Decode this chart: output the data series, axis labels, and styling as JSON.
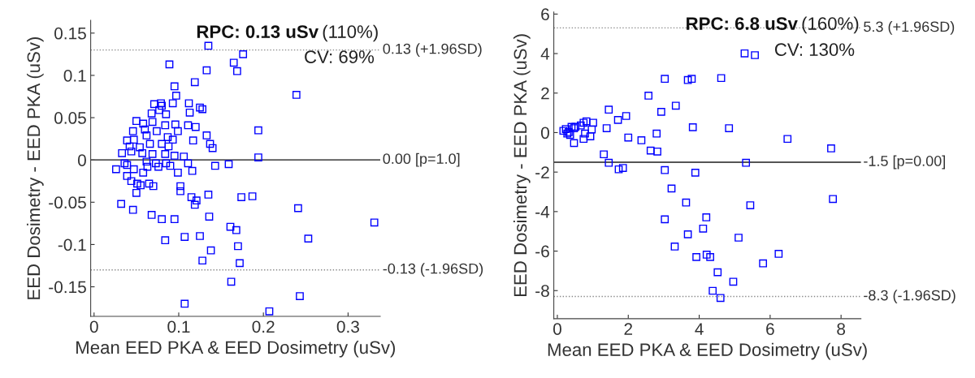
{
  "chart_data": [
    {
      "type": "scatter",
      "xlabel": "Mean EED PKA & EED Dosimetry (uSv)",
      "ylabel": "EED Dosimetry - EED PKA (uSv)",
      "marker": "square",
      "color": "#0000ff",
      "grid": false,
      "xlim": [
        -0.004,
        0.338
      ],
      "ylim": [
        -0.185,
        0.165
      ],
      "xticks": [
        0,
        0.1,
        0.2,
        0.3
      ],
      "yticks": [
        -0.15,
        -0.1,
        -0.05,
        0,
        0.05,
        0.1,
        0.15
      ],
      "x": [
        0.135,
        0.176,
        0.165,
        0.169,
        0.089,
        0.133,
        0.119,
        0.095,
        0.097,
        0.093,
        0.112,
        0.125,
        0.128,
        0.113,
        0.079,
        0.071,
        0.08,
        0.068,
        0.085,
        0.077,
        0.05,
        0.058,
        0.069,
        0.084,
        0.096,
        0.111,
        0.12,
        0.046,
        0.06,
        0.074,
        0.099,
        0.133,
        0.137,
        0.14,
        0.117,
        0.194,
        0.039,
        0.047,
        0.062,
        0.087,
        0.093,
        0.042,
        0.054,
        0.066,
        0.08,
        0.088,
        0.033,
        0.044,
        0.057,
        0.069,
        0.084,
        0.095,
        0.194,
        0.106,
        0.036,
        0.039,
        0.062,
        0.073,
        0.076,
        0.085,
        0.026,
        0.047,
        0.063,
        0.09,
        0.111,
        0.116,
        0.099,
        0.143,
        0.159,
        0.039,
        0.058,
        0.044,
        0.051,
        0.055,
        0.065,
        0.07,
        0.05,
        0.102,
        0.102,
        0.115,
        0.121,
        0.119,
        0.135,
        0.174,
        0.187,
        0.032,
        0.046,
        0.068,
        0.08,
        0.095,
        0.136,
        0.161,
        0.168,
        0.084,
        0.107,
        0.125,
        0.138,
        0.17,
        0.128,
        0.172,
        0.162,
        0.107,
        0.207,
        0.239,
        0.241,
        0.253,
        0.331,
        0.243
      ],
      "values": [
        0.135,
        0.125,
        0.115,
        0.105,
        0.113,
        0.106,
        0.092,
        0.087,
        0.076,
        0.067,
        0.067,
        0.062,
        0.06,
        0.056,
        0.067,
        0.066,
        0.064,
        0.055,
        0.054,
        0.059,
        0.046,
        0.043,
        0.045,
        0.041,
        0.042,
        0.041,
        0.039,
        0.034,
        0.036,
        0.034,
        0.034,
        0.029,
        0.019,
        0.014,
        0.023,
        0.035,
        0.023,
        0.024,
        0.029,
        0.027,
        0.024,
        0.016,
        0.015,
        0.019,
        0.019,
        0.016,
        0.008,
        0.01,
        0.008,
        0.007,
        0.007,
        0.005,
        0.003,
        0.004,
        -0.004,
        -0.006,
        -0.002,
        -0.004,
        -0.008,
        -0.004,
        -0.011,
        -0.011,
        -0.008,
        -0.007,
        -0.004,
        -0.013,
        -0.015,
        -0.007,
        -0.005,
        -0.019,
        -0.015,
        -0.025,
        -0.028,
        -0.03,
        -0.028,
        -0.031,
        -0.039,
        -0.031,
        -0.037,
        -0.044,
        -0.048,
        -0.053,
        -0.041,
        -0.044,
        -0.043,
        -0.052,
        -0.059,
        -0.065,
        -0.07,
        -0.07,
        -0.067,
        -0.079,
        -0.083,
        -0.095,
        -0.091,
        -0.09,
        -0.107,
        -0.102,
        -0.119,
        -0.122,
        -0.144,
        -0.17,
        -0.179,
        0.077,
        -0.057,
        -0.093,
        -0.074,
        -0.161
      ],
      "ref_lines": [
        {
          "axis": "y",
          "value": 0.13,
          "label": "0.13 (+1.96SD)",
          "color": "#888888",
          "line_style": "dotted"
        },
        {
          "axis": "y",
          "value": 0,
          "label": "0.00 [p=1.0]",
          "color": "#555555",
          "line_style": "solid"
        },
        {
          "axis": "y",
          "value": -0.13,
          "label": "-0.13 (-1.96SD)",
          "color": "#888888",
          "line_style": "dotted"
        }
      ],
      "annotations": [
        "RPC: 0.13 uSv",
        "(110%)",
        "CV: 69%"
      ]
    },
    {
      "type": "scatter",
      "xlabel": "Mean EED PKA & EED Dosimetry (uSv)",
      "ylabel": "EED Dosimetry - EED PKA (uSv)",
      "marker": "square",
      "color": "#0000ff",
      "grid": false,
      "xlim": [
        -0.1,
        8.56
      ],
      "ylim": [
        -9.42,
        6.1
      ],
      "xticks": [
        0,
        2,
        4,
        6,
        8
      ],
      "yticks": [
        -8,
        -6,
        -4,
        -2,
        0,
        2,
        4,
        6
      ],
      "x": [
        0.17,
        0.24,
        0.32,
        0.4,
        0.47,
        0.36,
        0.47,
        0.74,
        0.82,
        0.74,
        0.78,
        0.93,
        1.01,
        0.97,
        0.66,
        0.28,
        0.51,
        1.45,
        1.39,
        1.71,
        1.94,
        2.0,
        2.37,
        2.57,
        2.8,
        2.63,
        2.82,
        2.93,
        3.03,
        3.34,
        3.68,
        3.79,
        3.82,
        4.62,
        4.84,
        5.28,
        5.57,
        1.31,
        1.45,
        1.73,
        1.85,
        3.03,
        3.89,
        3.22,
        3.63,
        3.03,
        3.68,
        3.31,
        3.92,
        4.2,
        4.11,
        4.21,
        4.31,
        4.52,
        4.38,
        4.6,
        4.96,
        5.11,
        5.32,
        5.44,
        5.8,
        6.24,
        6.49,
        7.72,
        7.77
      ],
      "values": [
        0.09,
        0.18,
        0.02,
        0.29,
        0.22,
        -0.12,
        -0.53,
        0.5,
        0.57,
        -0.32,
        -0.05,
        -0.19,
        0.5,
        0.16,
        0.36,
        -0.05,
        0.29,
        1.16,
        0.22,
        0.64,
        0.84,
        -0.25,
        -0.39,
        1.87,
        -0.05,
        -0.91,
        -0.96,
        1.05,
        2.72,
        1.36,
        2.66,
        2.72,
        0.27,
        2.76,
        0.22,
        4.01,
        3.92,
        -1.1,
        -1.53,
        -1.86,
        -1.79,
        -1.9,
        -2.03,
        -2.83,
        -3.54,
        -4.39,
        -5.15,
        -5.77,
        -6.3,
        -4.29,
        -4.86,
        -6.18,
        -6.3,
        -7.07,
        -8.01,
        -8.37,
        -7.55,
        -5.32,
        -1.53,
        -3.68,
        -6.62,
        -6.14,
        -0.32,
        -0.8,
        -3.36
      ],
      "ref_lines": [
        {
          "axis": "y",
          "value": 5.3,
          "label": "5.3 (+1.96SD)",
          "color": "#888888",
          "line_style": "dotted"
        },
        {
          "axis": "y",
          "value": -1.5,
          "label": "-1.5 [p=0.00]",
          "color": "#555555",
          "line_style": "solid"
        },
        {
          "axis": "y",
          "value": -8.3,
          "label": "-8.3 (-1.96SD)",
          "color": "#888888",
          "line_style": "dotted"
        }
      ],
      "annotations": [
        "RPC: 6.8 uSv",
        "(160%)",
        "CV: 130%"
      ]
    }
  ]
}
